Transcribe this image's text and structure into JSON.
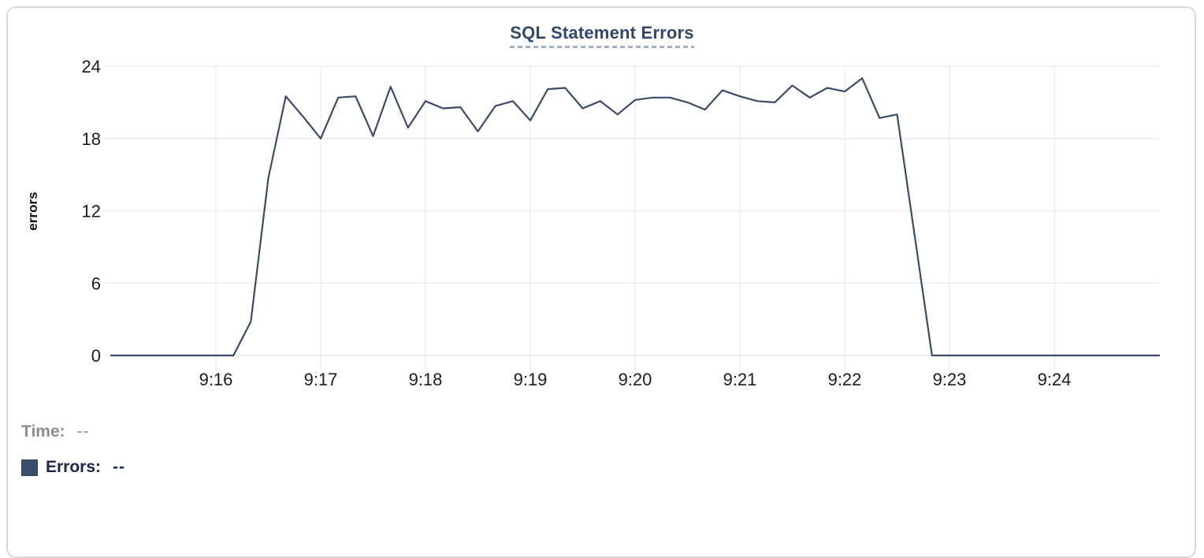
{
  "card": {
    "title": "SQL Statement Errors"
  },
  "legend": {
    "time_label": "Time:",
    "time_value": "--",
    "errors_label": "Errors:",
    "errors_value": "--",
    "swatch_color": "#3d4d6c"
  },
  "colors": {
    "line": "#3b4a6b",
    "title": "#33476b",
    "gridline": "#ececec",
    "axis_text": "#1c1c1c",
    "gray_text": "#8d8d8d",
    "card_border": "#d8d8d8"
  },
  "chart_data": {
    "type": "line",
    "title": "SQL Statement Errors",
    "xlabel": "",
    "ylabel": "errors",
    "ylim": [
      0,
      24
    ],
    "y_ticks": [
      0,
      6,
      12,
      18,
      24
    ],
    "x_ticks": [
      "9:16",
      "9:17",
      "9:18",
      "9:19",
      "9:20",
      "9:21",
      "9:22",
      "9:23",
      "9:24"
    ],
    "x_range": [
      "9:15:00",
      "9:25:00"
    ],
    "interval_seconds": 10,
    "grid": true,
    "legend_position": "bottom-left",
    "series": [
      {
        "name": "Errors",
        "color": "#3b4a6b",
        "times": [
          "9:15:00",
          "9:15:10",
          "9:15:20",
          "9:15:30",
          "9:15:40",
          "9:15:50",
          "9:16:00",
          "9:16:10",
          "9:16:20",
          "9:16:30",
          "9:16:40",
          "9:16:50",
          "9:17:00",
          "9:17:10",
          "9:17:20",
          "9:17:30",
          "9:17:40",
          "9:17:50",
          "9:18:00",
          "9:18:10",
          "9:18:20",
          "9:18:30",
          "9:18:40",
          "9:18:50",
          "9:19:00",
          "9:19:10",
          "9:19:20",
          "9:19:30",
          "9:19:40",
          "9:19:50",
          "9:20:00",
          "9:20:10",
          "9:20:20",
          "9:20:30",
          "9:20:40",
          "9:20:50",
          "9:21:00",
          "9:21:10",
          "9:21:20",
          "9:21:30",
          "9:21:40",
          "9:21:50",
          "9:22:00",
          "9:22:10",
          "9:22:20",
          "9:22:30",
          "9:22:40",
          "9:22:50",
          "9:23:00",
          "9:23:10",
          "9:23:20",
          "9:23:30",
          "9:23:40",
          "9:23:50",
          "9:24:00",
          "9:24:10",
          "9:24:20",
          "9:24:30",
          "9:24:40",
          "9:24:50",
          "9:25:00"
        ],
        "values": [
          0,
          0,
          0,
          0,
          0,
          0,
          0,
          0,
          2.8,
          14.7,
          21.5,
          19.8,
          18.0,
          21.4,
          21.5,
          18.2,
          22.3,
          18.9,
          21.1,
          20.5,
          20.6,
          18.6,
          20.7,
          21.1,
          19.5,
          22.1,
          22.2,
          20.5,
          21.1,
          20.0,
          21.2,
          21.4,
          21.4,
          21.0,
          20.4,
          22.0,
          21.5,
          21.1,
          21.0,
          22.4,
          21.4,
          22.2,
          21.9,
          23.0,
          19.7,
          20.0,
          10.0,
          0,
          0,
          0,
          0,
          0,
          0,
          0,
          0,
          0,
          0,
          0,
          0,
          0,
          0
        ]
      }
    ]
  }
}
